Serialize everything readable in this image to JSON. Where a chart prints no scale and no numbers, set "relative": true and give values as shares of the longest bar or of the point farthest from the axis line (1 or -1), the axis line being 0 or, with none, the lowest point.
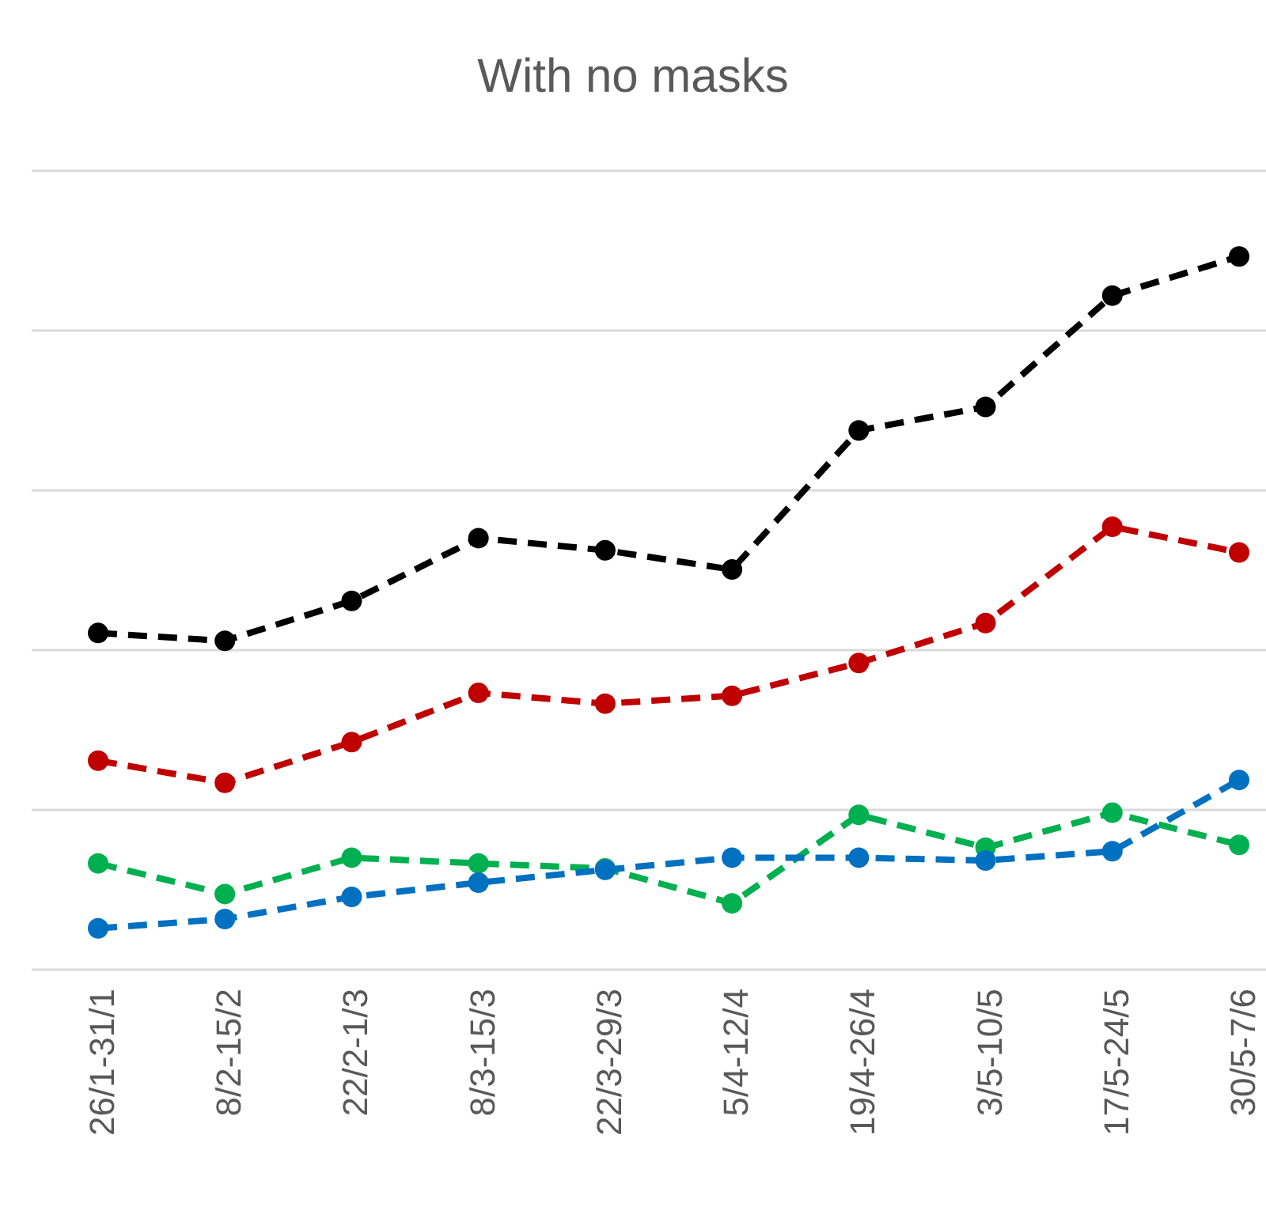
{
  "chart_data": {
    "type": "line",
    "title": "With no masks",
    "relative": true,
    "grid": "y",
    "marker": "circle",
    "line_style": "dashed",
    "categories": [
      "26/1-31/1",
      "8/2-15/2",
      "22/2-1/3",
      "8/3-15/3",
      "22/3-29/3",
      "5/4-12/4",
      "19/4-26/4",
      "3/5-10/5",
      "17/5-24/5",
      "30/5-7/6"
    ],
    "series": [
      {
        "color": "#000000",
        "values": [
          0.472,
          0.461,
          0.517,
          0.605,
          0.588,
          0.561,
          0.756,
          0.789,
          0.945,
          1
        ]
      },
      {
        "color": "#c00000",
        "values": [
          0.293,
          0.262,
          0.319,
          0.388,
          0.373,
          0.384,
          0.43,
          0.486,
          0.621,
          0.585
        ]
      },
      {
        "color": "#00b050",
        "values": [
          0.149,
          0.106,
          0.157,
          0.149,
          0.142,
          0.093,
          0.217,
          0.171,
          0.22,
          0.175
        ]
      },
      {
        "color": "#0070c0",
        "values": [
          0.058,
          0.071,
          0.102,
          0.122,
          0.14,
          0.157,
          0.157,
          0.153,
          0.166,
          0.266
        ]
      }
    ]
  }
}
